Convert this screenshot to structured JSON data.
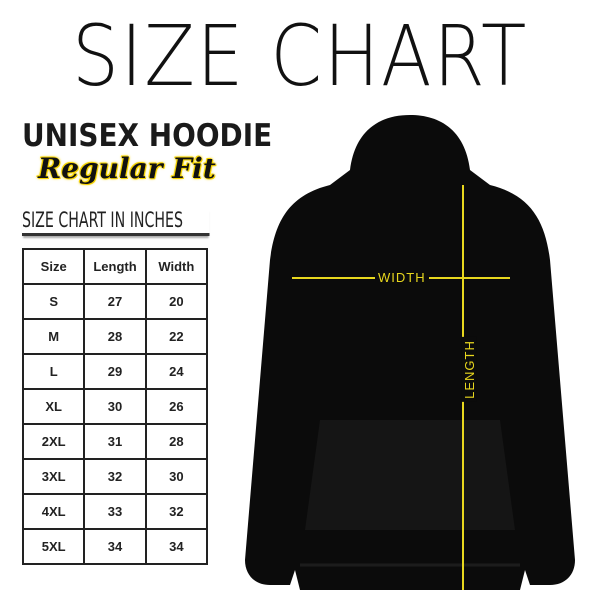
{
  "title": "SIZE CHART",
  "product": "UNISEX HOODIE",
  "fit": "Regular Fit",
  "unit_caption": "SIZE CHART IN INCHES",
  "table": {
    "headers": [
      "Size",
      "Length",
      "Width"
    ],
    "rows": [
      [
        "S",
        "27",
        "20"
      ],
      [
        "M",
        "28",
        "22"
      ],
      [
        "L",
        "29",
        "24"
      ],
      [
        "XL",
        "30",
        "26"
      ],
      [
        "2XL",
        "31",
        "28"
      ],
      [
        "3XL",
        "32",
        "30"
      ],
      [
        "4XL",
        "33",
        "32"
      ],
      [
        "5XL",
        "34",
        "34"
      ]
    ]
  },
  "diagram": {
    "width_label": "WIDTH",
    "length_label": "LENGTH",
    "line_color": "#e8d71e",
    "garment_color": "#0b0b0b"
  }
}
